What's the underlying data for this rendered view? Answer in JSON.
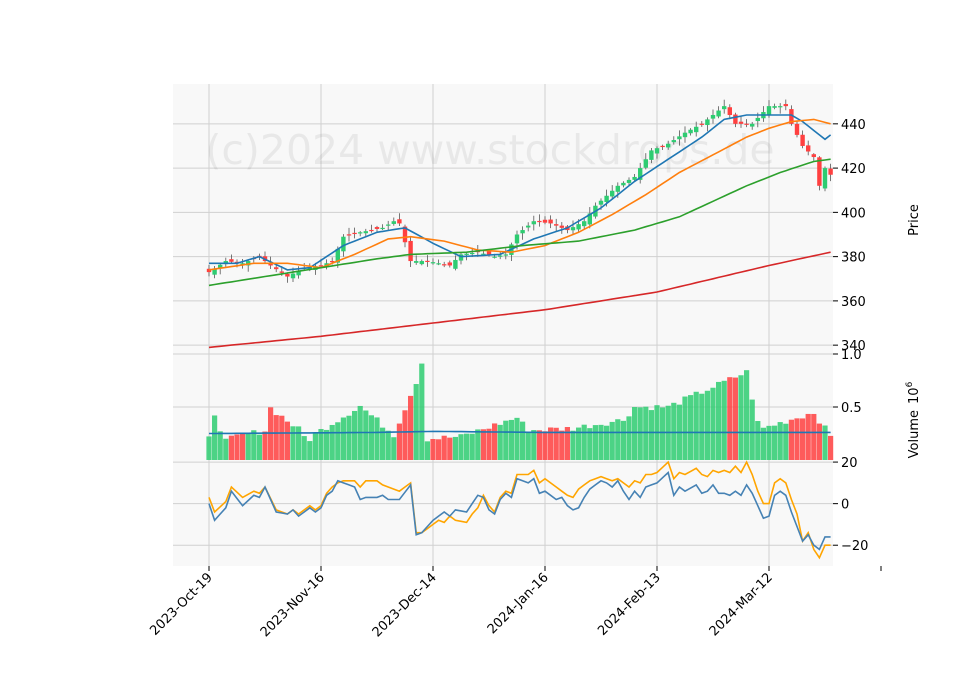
{
  "watermark": "(c)2024 www.stockdrops.de",
  "colors": {
    "panel_bg": "#f8f8f8",
    "grid": "#d0d0d0",
    "up": "#2ecc71",
    "down": "#ff4040",
    "ma_blue": "#1f77b4",
    "ma_orange": "#ff7f0e",
    "ma_green": "#2ca02c",
    "ma_red": "#d62728",
    "osc_blue": "#4682b4",
    "osc_orange": "#ffa500"
  },
  "chart_data": {
    "type": "candlestick",
    "x_tick_labels": [
      "2023-Oct-19",
      "2023-Nov-16",
      "2023-Dec-14",
      "2024-Jan-16",
      "2024-Feb-13",
      "2024-Mar-12"
    ],
    "price_axis": {
      "label": "Price",
      "ticks": [
        340,
        360,
        380,
        400,
        420,
        440
      ],
      "ylim": [
        336,
        458
      ]
    },
    "volume_axis": {
      "label": "Volume",
      "exponent": "6",
      "ticks": [
        "0.5",
        "1.0"
      ],
      "tick_values": [
        0.5,
        1.0
      ],
      "ylim": [
        0,
        1.0
      ]
    },
    "osc_axis": {
      "ticks": [
        "20",
        "0",
        "−20"
      ],
      "tick_values": [
        20,
        0,
        -20
      ],
      "ylim": [
        -30,
        21
      ]
    },
    "price_anchors": {
      "close": [
        [
          0,
          373
        ],
        [
          3,
          378
        ],
        [
          6,
          377
        ],
        [
          9,
          380
        ],
        [
          11,
          376
        ],
        [
          14,
          371
        ],
        [
          17,
          375
        ],
        [
          20,
          376
        ],
        [
          22,
          378
        ],
        [
          24,
          389
        ],
        [
          27,
          391
        ],
        [
          31,
          393
        ],
        [
          33,
          396
        ],
        [
          34,
          395
        ],
        [
          36,
          378
        ],
        [
          39,
          378
        ],
        [
          43,
          376
        ],
        [
          45,
          381
        ],
        [
          48,
          382
        ],
        [
          51,
          380
        ],
        [
          53,
          381
        ],
        [
          55,
          390
        ],
        [
          58,
          396
        ],
        [
          61,
          395
        ],
        [
          64,
          392
        ],
        [
          67,
          396
        ],
        [
          69,
          403
        ],
        [
          73,
          412
        ],
        [
          76,
          416
        ],
        [
          79,
          428
        ],
        [
          82,
          431
        ],
        [
          85,
          436
        ],
        [
          88,
          440
        ],
        [
          91,
          446
        ],
        [
          92,
          448
        ],
        [
          94,
          440
        ],
        [
          97,
          440
        ],
        [
          100,
          448
        ],
        [
          103,
          448
        ],
        [
          104,
          440
        ],
        [
          106,
          430
        ],
        [
          108,
          425
        ],
        [
          109,
          412
        ],
        [
          110,
          420
        ],
        [
          111,
          417
        ]
      ]
    },
    "ma_anchors": {
      "ma_short": [
        [
          0,
          377
        ],
        [
          5,
          377
        ],
        [
          9,
          380
        ],
        [
          14,
          374
        ],
        [
          18,
          375
        ],
        [
          24,
          385
        ],
        [
          30,
          391
        ],
        [
          35,
          393
        ],
        [
          40,
          386
        ],
        [
          45,
          380
        ],
        [
          52,
          381
        ],
        [
          58,
          388
        ],
        [
          64,
          393
        ],
        [
          70,
          402
        ],
        [
          76,
          414
        ],
        [
          82,
          424
        ],
        [
          88,
          434
        ],
        [
          92,
          442
        ],
        [
          96,
          444
        ],
        [
          100,
          444
        ],
        [
          104,
          444
        ],
        [
          106,
          441
        ],
        [
          108,
          437
        ],
        [
          110,
          433
        ],
        [
          111,
          435
        ]
      ],
      "ma_medium": [
        [
          0,
          374
        ],
        [
          8,
          377
        ],
        [
          14,
          377
        ],
        [
          20,
          375
        ],
        [
          26,
          381
        ],
        [
          32,
          388
        ],
        [
          36,
          389
        ],
        [
          42,
          387
        ],
        [
          48,
          383
        ],
        [
          54,
          382
        ],
        [
          60,
          385
        ],
        [
          66,
          391
        ],
        [
          72,
          399
        ],
        [
          78,
          408
        ],
        [
          84,
          418
        ],
        [
          90,
          426
        ],
        [
          96,
          434
        ],
        [
          100,
          438
        ],
        [
          104,
          441
        ],
        [
          108,
          442
        ],
        [
          111,
          440
        ]
      ],
      "ma_long": [
        [
          0,
          367
        ],
        [
          10,
          371
        ],
        [
          20,
          375
        ],
        [
          30,
          379
        ],
        [
          36,
          381
        ],
        [
          46,
          382
        ],
        [
          56,
          385
        ],
        [
          66,
          387
        ],
        [
          76,
          392
        ],
        [
          84,
          398
        ],
        [
          90,
          405
        ],
        [
          96,
          412
        ],
        [
          102,
          418
        ],
        [
          108,
          423
        ],
        [
          111,
          424
        ]
      ],
      "ma_200": [
        [
          0,
          339
        ],
        [
          20,
          344
        ],
        [
          40,
          350
        ],
        [
          60,
          356
        ],
        [
          80,
          364
        ],
        [
          100,
          376
        ],
        [
          111,
          382
        ]
      ]
    },
    "volume_anchors": {
      "volume": [
        [
          0,
          0.2
        ],
        [
          1,
          0.44
        ],
        [
          2,
          0.3
        ],
        [
          3,
          0.18
        ],
        [
          4,
          0.2
        ],
        [
          5,
          0.22
        ],
        [
          10,
          0.28
        ],
        [
          11,
          0.49
        ],
        [
          16,
          0.29
        ],
        [
          17,
          0.22
        ],
        [
          18,
          0.2
        ],
        [
          20,
          0.28
        ],
        [
          27,
          0.51
        ],
        [
          33,
          0.24
        ],
        [
          37,
          0.74
        ],
        [
          38,
          0.92
        ],
        [
          39,
          0.2
        ],
        [
          45,
          0.22
        ],
        [
          55,
          0.4
        ],
        [
          57,
          0.28
        ],
        [
          65,
          0.3
        ],
        [
          74,
          0.38
        ],
        [
          76,
          0.5
        ],
        [
          82,
          0.5
        ],
        [
          96,
          0.83
        ],
        [
          98,
          0.35
        ],
        [
          99,
          0.3
        ],
        [
          108,
          0.45
        ],
        [
          111,
          0.22
        ]
      ],
      "volume_ma": [
        [
          0,
          0.25
        ],
        [
          30,
          0.26
        ],
        [
          40,
          0.27
        ],
        [
          60,
          0.26
        ],
        [
          80,
          0.26
        ],
        [
          111,
          0.26
        ]
      ]
    },
    "osc_anchors": {
      "osc_fast": [
        [
          0,
          0
        ],
        [
          1,
          -8
        ],
        [
          3,
          -2
        ],
        [
          4,
          6
        ],
        [
          6,
          -1
        ],
        [
          8,
          4
        ],
        [
          9,
          3
        ],
        [
          10,
          8
        ],
        [
          12,
          -4
        ],
        [
          14,
          -5
        ],
        [
          15,
          -3
        ],
        [
          16,
          -6
        ],
        [
          18,
          -2
        ],
        [
          19,
          -4
        ],
        [
          20,
          -2
        ],
        [
          21,
          4
        ],
        [
          22,
          6
        ],
        [
          23,
          11
        ],
        [
          24,
          10
        ],
        [
          26,
          8
        ],
        [
          27,
          2
        ],
        [
          28,
          3
        ],
        [
          30,
          3
        ],
        [
          31,
          4
        ],
        [
          32,
          2
        ],
        [
          34,
          2
        ],
        [
          36,
          9
        ],
        [
          37,
          -15
        ],
        [
          38,
          -14
        ],
        [
          40,
          -8
        ],
        [
          41,
          -6
        ],
        [
          42,
          -4
        ],
        [
          43,
          -6
        ],
        [
          44,
          -3
        ],
        [
          46,
          -4
        ],
        [
          47,
          0
        ],
        [
          48,
          4
        ],
        [
          49,
          3
        ],
        [
          50,
          -3
        ],
        [
          51,
          -5
        ],
        [
          52,
          2
        ],
        [
          53,
          5
        ],
        [
          54,
          3
        ],
        [
          55,
          12
        ],
        [
          57,
          10
        ],
        [
          58,
          12
        ],
        [
          59,
          5
        ],
        [
          60,
          6
        ],
        [
          62,
          2
        ],
        [
          63,
          3
        ],
        [
          64,
          -1
        ],
        [
          65,
          -3
        ],
        [
          66,
          -2
        ],
        [
          67,
          3
        ],
        [
          68,
          7
        ],
        [
          70,
          11
        ],
        [
          71,
          10
        ],
        [
          72,
          8
        ],
        [
          73,
          11
        ],
        [
          74,
          6
        ],
        [
          75,
          2
        ],
        [
          76,
          6
        ],
        [
          77,
          3
        ],
        [
          78,
          8
        ],
        [
          79,
          9
        ],
        [
          80,
          10
        ],
        [
          82,
          15
        ],
        [
          83,
          4
        ],
        [
          84,
          8
        ],
        [
          85,
          6
        ],
        [
          87,
          9
        ],
        [
          88,
          5
        ],
        [
          89,
          6
        ],
        [
          90,
          9
        ],
        [
          91,
          5
        ],
        [
          92,
          5
        ],
        [
          93,
          4
        ],
        [
          94,
          6
        ],
        [
          95,
          4
        ],
        [
          96,
          9
        ],
        [
          97,
          5
        ],
        [
          98,
          -1
        ],
        [
          99,
          -7
        ],
        [
          100,
          -6
        ],
        [
          101,
          4
        ],
        [
          102,
          6
        ],
        [
          103,
          4
        ],
        [
          104,
          -4
        ],
        [
          105,
          -11
        ],
        [
          106,
          -18
        ],
        [
          107,
          -15
        ],
        [
          108,
          -20
        ],
        [
          109,
          -22
        ],
        [
          110,
          -16
        ],
        [
          111,
          -16
        ]
      ],
      "osc_slow": [
        [
          0,
          3
        ],
        [
          1,
          -4
        ],
        [
          3,
          1
        ],
        [
          4,
          8
        ],
        [
          6,
          3
        ],
        [
          8,
          6
        ],
        [
          9,
          5
        ],
        [
          10,
          8
        ],
        [
          12,
          -3
        ],
        [
          14,
          -5
        ],
        [
          15,
          -3
        ],
        [
          16,
          -5
        ],
        [
          18,
          -1
        ],
        [
          19,
          -3
        ],
        [
          20,
          -1
        ],
        [
          21,
          5
        ],
        [
          22,
          8
        ],
        [
          23,
          10
        ],
        [
          24,
          11
        ],
        [
          26,
          11
        ],
        [
          27,
          8
        ],
        [
          28,
          11
        ],
        [
          30,
          11
        ],
        [
          31,
          9
        ],
        [
          32,
          8
        ],
        [
          34,
          6
        ],
        [
          36,
          10
        ],
        [
          37,
          -14
        ],
        [
          38,
          -14
        ],
        [
          40,
          -10
        ],
        [
          41,
          -8
        ],
        [
          42,
          -9
        ],
        [
          43,
          -6
        ],
        [
          44,
          -8
        ],
        [
          46,
          -9
        ],
        [
          47,
          -5
        ],
        [
          48,
          -2
        ],
        [
          49,
          4
        ],
        [
          50,
          -1
        ],
        [
          51,
          -4
        ],
        [
          52,
          3
        ],
        [
          53,
          6
        ],
        [
          54,
          5
        ],
        [
          55,
          14
        ],
        [
          57,
          14
        ],
        [
          58,
          16
        ],
        [
          59,
          10
        ],
        [
          60,
          12
        ],
        [
          62,
          8
        ],
        [
          63,
          6
        ],
        [
          64,
          4
        ],
        [
          65,
          3
        ],
        [
          66,
          7
        ],
        [
          67,
          9
        ],
        [
          68,
          11
        ],
        [
          70,
          13
        ],
        [
          71,
          12
        ],
        [
          72,
          11
        ],
        [
          73,
          12
        ],
        [
          74,
          10
        ],
        [
          75,
          8
        ],
        [
          76,
          11
        ],
        [
          77,
          10
        ],
        [
          78,
          14
        ],
        [
          79,
          14
        ],
        [
          80,
          15
        ],
        [
          82,
          20
        ],
        [
          83,
          12
        ],
        [
          84,
          15
        ],
        [
          85,
          14
        ],
        [
          87,
          17
        ],
        [
          88,
          14
        ],
        [
          89,
          13
        ],
        [
          90,
          16
        ],
        [
          91,
          15
        ],
        [
          92,
          16
        ],
        [
          93,
          15
        ],
        [
          94,
          18
        ],
        [
          95,
          15
        ],
        [
          96,
          20
        ],
        [
          97,
          14
        ],
        [
          98,
          6
        ],
        [
          99,
          0
        ],
        [
          100,
          0
        ],
        [
          101,
          10
        ],
        [
          102,
          12
        ],
        [
          103,
          10
        ],
        [
          104,
          2
        ],
        [
          105,
          -5
        ],
        [
          106,
          -18
        ],
        [
          107,
          -14
        ],
        [
          108,
          -22
        ],
        [
          109,
          -26
        ],
        [
          110,
          -20
        ],
        [
          111,
          -20
        ]
      ]
    }
  }
}
